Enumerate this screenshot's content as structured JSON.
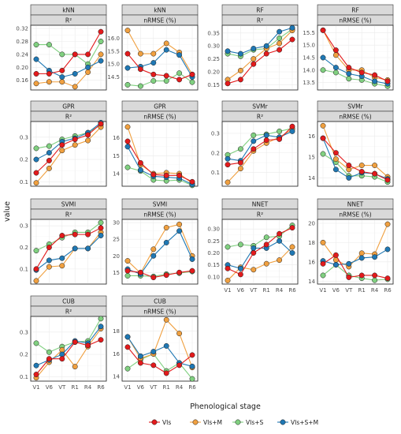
{
  "chart_data": {
    "type": "line",
    "xlabel": "Phenological stage",
    "ylabel": "value",
    "categories": [
      "V1",
      "V6",
      "VT",
      "R1",
      "R4",
      "R6"
    ],
    "colors": {
      "VIs": "#e31a1c",
      "VIs+M": "#f0a040",
      "VIs+S": "#80d080",
      "VIs+S+M": "#1f78b4"
    },
    "legend": {
      "position": "bottom",
      "entries": [
        "VIs",
        "VIs+M",
        "VIs+S",
        "VIs+S+M"
      ]
    },
    "grid": true,
    "panels": [
      {
        "model": "kNN",
        "metric": "R²",
        "ylim": [
          0.13,
          0.33
        ],
        "yticks": [
          0.16,
          0.2,
          0.24,
          0.28,
          0.32
        ],
        "series": [
          {
            "name": "VIs",
            "values": [
              0.18,
              0.18,
              0.19,
              0.24,
              0.24,
              0.31
            ]
          },
          {
            "name": "VIs+M",
            "values": [
              0.15,
              0.155,
              0.155,
              0.14,
              0.185,
              0.24
            ]
          },
          {
            "name": "VIs+S",
            "values": [
              0.27,
              0.27,
              0.24,
              0.24,
              0.21,
              0.28
            ]
          },
          {
            "name": "VIs+S+M",
            "values": [
              0.225,
              0.19,
              0.17,
              0.18,
              0.2,
              0.22
            ]
          }
        ]
      },
      {
        "model": "kNN",
        "metric": "nRMSE (%)",
        "ylim": [
          14.0,
          16.5
        ],
        "yticks": [
          14.5,
          15.0,
          15.5,
          16.0
        ],
        "series": [
          {
            "name": "VIs",
            "values": [
              15.4,
              14.8,
              14.6,
              14.55,
              14.4,
              14.6
            ]
          },
          {
            "name": "VIs+M",
            "values": [
              16.3,
              15.4,
              15.4,
              15.8,
              15.45,
              14.6
            ]
          },
          {
            "name": "VIs+S",
            "values": [
              14.2,
              14.15,
              14.35,
              14.35,
              14.65,
              14.3
            ]
          },
          {
            "name": "VIs+S+M",
            "values": [
              14.85,
              14.9,
              15.05,
              15.55,
              15.35,
              14.5
            ]
          }
        ]
      },
      {
        "model": "RF",
        "metric": "R²",
        "ylim": [
          0.13,
          0.38
        ],
        "yticks": [
          0.15,
          0.2,
          0.25,
          0.3,
          0.35
        ],
        "series": [
          {
            "name": "VIs",
            "values": [
              0.155,
              0.17,
              0.23,
              0.27,
              0.285,
              0.325
            ]
          },
          {
            "name": "VIs+M",
            "values": [
              0.17,
              0.205,
              0.25,
              0.29,
              0.31,
              0.36
            ]
          },
          {
            "name": "VIs+S",
            "values": [
              0.27,
              0.26,
              0.285,
              0.29,
              0.33,
              0.365
            ]
          },
          {
            "name": "VIs+S+M",
            "values": [
              0.28,
              0.27,
              0.29,
              0.3,
              0.355,
              0.37
            ]
          }
        ]
      },
      {
        "model": "RF",
        "metric": "nRMSE (%)",
        "ylim": [
          13.2,
          15.8
        ],
        "yticks": [
          13.5,
          14.0,
          14.5,
          15.0,
          15.5
        ],
        "series": [
          {
            "name": "VIs",
            "values": [
              15.6,
              14.8,
              14.1,
              13.9,
              13.8,
              13.55
            ]
          },
          {
            "name": "VIs+M",
            "values": [
              15.6,
              14.6,
              14.0,
              14.0,
              13.7,
              13.6
            ]
          },
          {
            "name": "VIs+S",
            "values": [
              14.0,
              13.9,
              13.65,
              13.6,
              13.45,
              13.35
            ]
          },
          {
            "name": "VIs+S+M",
            "values": [
              14.5,
              14.1,
              13.85,
              13.75,
              13.55,
              13.45
            ]
          }
        ]
      },
      {
        "model": "GPR",
        "metric": "R²",
        "ylim": [
          0.08,
          0.37
        ],
        "yticks": [
          0.1,
          0.2,
          0.3
        ],
        "series": [
          {
            "name": "VIs",
            "values": [
              0.14,
              0.195,
              0.265,
              0.29,
              0.31,
              0.36
            ]
          },
          {
            "name": "VIs+M",
            "values": [
              0.095,
              0.16,
              0.24,
              0.265,
              0.285,
              0.345
            ]
          },
          {
            "name": "VIs+S",
            "values": [
              0.25,
              0.26,
              0.29,
              0.305,
              0.32,
              0.355
            ]
          },
          {
            "name": "VIs+S+M",
            "values": [
              0.2,
              0.23,
              0.28,
              0.295,
              0.32,
              0.365
            ]
          }
        ]
      },
      {
        "model": "GPR",
        "metric": "nRMSE (%)",
        "ylim": [
          13.3,
          16.9
        ],
        "yticks": [
          14,
          15,
          16
        ],
        "series": [
          {
            "name": "VIs",
            "values": [
              15.8,
              14.6,
              13.95,
              13.9,
              13.9,
              13.55
            ]
          },
          {
            "name": "VIs+M",
            "values": [
              16.6,
              14.5,
              14.0,
              14.05,
              14.0,
              13.45
            ]
          },
          {
            "name": "VIs+S",
            "values": [
              14.35,
              14.15,
              13.65,
              13.6,
              13.65,
              13.35
            ]
          },
          {
            "name": "VIs+S+M",
            "values": [
              15.5,
              14.2,
              13.85,
              13.8,
              13.75,
              13.4
            ]
          }
        ]
      },
      {
        "model": "SVMr",
        "metric": "R²",
        "ylim": [
          0.03,
          0.36
        ],
        "yticks": [
          0.1,
          0.2,
          0.3
        ],
        "series": [
          {
            "name": "VIs",
            "values": [
              0.14,
              0.15,
              0.22,
              0.265,
              0.27,
              0.335
            ]
          },
          {
            "name": "VIs+M",
            "values": [
              0.05,
              0.12,
              0.21,
              0.25,
              0.28,
              0.32
            ]
          },
          {
            "name": "VIs+S",
            "values": [
              0.19,
              0.22,
              0.29,
              0.295,
              0.31,
              0.325
            ]
          },
          {
            "name": "VIs+S+M",
            "values": [
              0.17,
              0.16,
              0.26,
              0.29,
              0.28,
              0.31
            ]
          }
        ]
      },
      {
        "model": "SVMr",
        "metric": "nRMSE (%)",
        "ylim": [
          13.6,
          16.7
        ],
        "yticks": [
          14,
          15,
          16
        ],
        "series": [
          {
            "name": "VIs",
            "values": [
              15.9,
              15.2,
              14.6,
              14.3,
              14.2,
              13.9
            ]
          },
          {
            "name": "VIs+M",
            "values": [
              16.5,
              14.9,
              14.4,
              14.6,
              14.6,
              14.05
            ]
          },
          {
            "name": "VIs+S",
            "values": [
              15.15,
              14.75,
              14.1,
              14.1,
              14.05,
              13.8
            ]
          },
          {
            "name": "VIs+S+M",
            "values": [
              15.9,
              14.4,
              14.0,
              14.25,
              14.2,
              13.95
            ]
          }
        ]
      },
      {
        "model": "SVMl",
        "metric": "R²",
        "ylim": [
          0.03,
          0.33
        ],
        "yticks": [
          0.1,
          0.2,
          0.3
        ],
        "series": [
          {
            "name": "VIs",
            "values": [
              0.1,
              0.2,
              0.255,
              0.26,
              0.26,
              0.29
            ]
          },
          {
            "name": "VIs+M",
            "values": [
              0.045,
              0.11,
              0.115,
              0.195,
              0.195,
              0.27
            ]
          },
          {
            "name": "VIs+S",
            "values": [
              0.185,
              0.215,
              0.245,
              0.27,
              0.27,
              0.315
            ]
          },
          {
            "name": "VIs+S+M",
            "values": [
              0.095,
              0.14,
              0.15,
              0.195,
              0.195,
              0.255
            ]
          }
        ]
      },
      {
        "model": "SVMl",
        "metric": "nRMSE (%)",
        "ylim": [
          11.5,
          31
        ],
        "yticks": [
          15,
          20,
          25,
          30
        ],
        "series": [
          {
            "name": "VIs",
            "values": [
              15.5,
              15.0,
              13.5,
              14.2,
              15.0,
              15.5
            ]
          },
          {
            "name": "VIs+M",
            "values": [
              18.5,
              14.8,
              22.0,
              28.5,
              29.5,
              20.0
            ]
          },
          {
            "name": "VIs+S",
            "values": [
              14.0,
              14.0,
              13.8,
              14.5,
              14.8,
              15.3
            ]
          },
          {
            "name": "VIs+S+M",
            "values": [
              16.0,
              14.5,
              20.0,
              24.0,
              27.5,
              19.0
            ]
          }
        ]
      },
      {
        "model": "NNET",
        "metric": "R²",
        "ylim": [
          0.07,
          0.34
        ],
        "yticks": [
          0.1,
          0.15,
          0.2,
          0.25,
          0.3
        ],
        "series": [
          {
            "name": "VIs",
            "values": [
              0.135,
              0.11,
              0.2,
              0.235,
              0.28,
              0.305
            ]
          },
          {
            "name": "VIs+M",
            "values": [
              0.085,
              0.14,
              0.13,
              0.155,
              0.17,
              0.225
            ]
          },
          {
            "name": "VIs+S",
            "values": [
              0.225,
              0.235,
              0.23,
              0.265,
              0.27,
              0.315
            ]
          },
          {
            "name": "VIs+S+M",
            "values": [
              0.15,
              0.135,
              0.22,
              0.22,
              0.25,
              0.2
            ]
          }
        ]
      },
      {
        "model": "NNET",
        "metric": "nRMSE (%)",
        "ylim": [
          13.7,
          20.4
        ],
        "yticks": [
          14,
          16,
          18,
          20
        ],
        "series": [
          {
            "name": "VIs",
            "values": [
              15.8,
              16.7,
              14.4,
              14.6,
              14.6,
              14.3
            ]
          },
          {
            "name": "VIs+M",
            "values": [
              18.0,
              16.2,
              15.5,
              16.9,
              16.8,
              19.9
            ]
          },
          {
            "name": "VIs+S",
            "values": [
              14.6,
              15.7,
              14.6,
              14.3,
              14.1,
              14.2
            ]
          },
          {
            "name": "VIs+S+M",
            "values": [
              16.1,
              15.7,
              15.8,
              16.4,
              16.5,
              17.3
            ]
          }
        ]
      },
      {
        "model": "CUB",
        "metric": "R²",
        "ylim": [
          0.08,
          0.37
        ],
        "yticks": [
          0.1,
          0.2,
          0.3
        ],
        "series": [
          {
            "name": "VIs",
            "values": [
              0.11,
              0.18,
              0.18,
              0.255,
              0.24,
              0.265
            ]
          },
          {
            "name": "VIs+M",
            "values": [
              0.095,
              0.165,
              0.22,
              0.145,
              0.235,
              0.315
            ]
          },
          {
            "name": "VIs+S",
            "values": [
              0.25,
              0.21,
              0.235,
              0.255,
              0.26,
              0.36
            ]
          },
          {
            "name": "VIs+S+M",
            "values": [
              0.15,
              0.175,
              0.2,
              0.26,
              0.25,
              0.325
            ]
          }
        ]
      },
      {
        "model": "CUB",
        "metric": "nRMSE (%)",
        "ylim": [
          13.6,
          19.3
        ],
        "yticks": [
          14,
          16,
          18
        ],
        "series": [
          {
            "name": "VIs",
            "values": [
              16.6,
              15.2,
              15.0,
              14.3,
              15.0,
              15.9
            ]
          },
          {
            "name": "VIs+M",
            "values": [
              17.5,
              15.6,
              16.0,
              19.0,
              17.8,
              14.8
            ]
          },
          {
            "name": "VIs+S",
            "values": [
              14.7,
              15.5,
              16.0,
              14.5,
              15.2,
              13.8
            ]
          },
          {
            "name": "VIs+S+M",
            "values": [
              17.5,
              15.8,
              16.2,
              16.7,
              15.2,
              14.9
            ]
          }
        ]
      }
    ]
  }
}
